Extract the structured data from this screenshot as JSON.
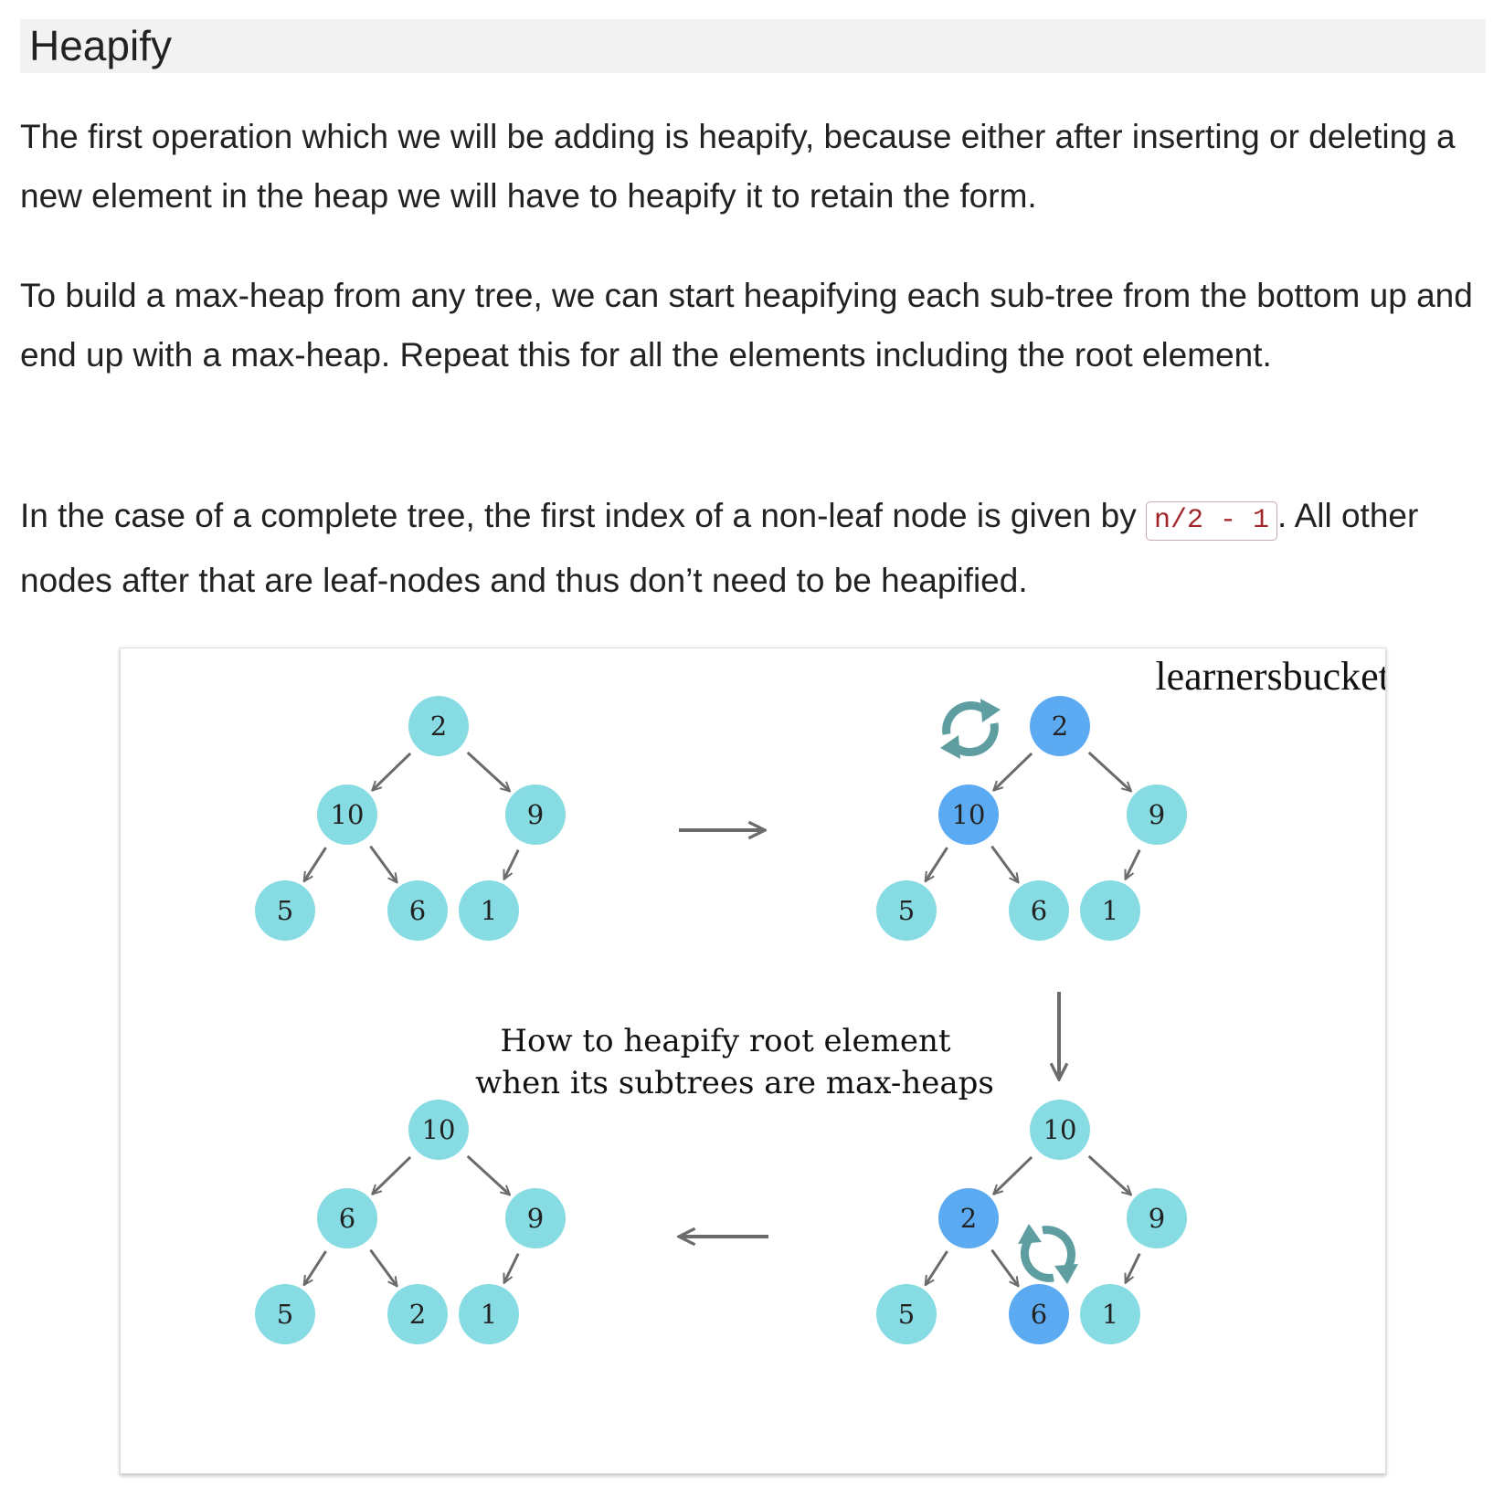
{
  "article": {
    "heading": "Heapify",
    "paragraph_1": "The first operation which we will be adding is heapify, because either after inserting or deleting a new element in the heap we will have to heapify it to retain the form.",
    "paragraph_2": "To build a max-heap from any tree, we can start heapifying each sub-tree from the bottom up and end up with a max-heap. Repeat this for all the elements including the root element.",
    "paragraph_3_before": "In the case of a complete tree, the first index of a non-leaf node is given by ",
    "paragraph_3_code": "n/2 - 1",
    "paragraph_3_after": ". All other nodes after that are leaf-nodes and thus don’t need to be heapified."
  },
  "figure": {
    "watermark": "learnersbucket.com",
    "caption_line_1": "How to heapify root element",
    "caption_line_2": "when its subtrees are max-heaps",
    "colors": {
      "normal_node": "#86dce2",
      "highlight_node": "#5cabf2",
      "arrow": "#6b6b6b",
      "swap_icon": "#5e9ea0"
    },
    "icons": [
      "swap-icon"
    ],
    "trees": [
      {
        "name": "step-1",
        "nodes": [
          "2",
          "10",
          "9",
          "5",
          "6",
          "1"
        ],
        "highlighted": []
      },
      {
        "name": "step-2",
        "nodes": [
          "2",
          "10",
          "9",
          "5",
          "6",
          "1"
        ],
        "highlighted": [
          "2",
          "10"
        ]
      },
      {
        "name": "step-3",
        "nodes": [
          "10",
          "2",
          "9",
          "5",
          "6",
          "1"
        ],
        "highlighted": [
          "2",
          "6"
        ]
      },
      {
        "name": "step-4",
        "nodes": [
          "10",
          "6",
          "9",
          "5",
          "2",
          "1"
        ],
        "highlighted": []
      }
    ]
  }
}
